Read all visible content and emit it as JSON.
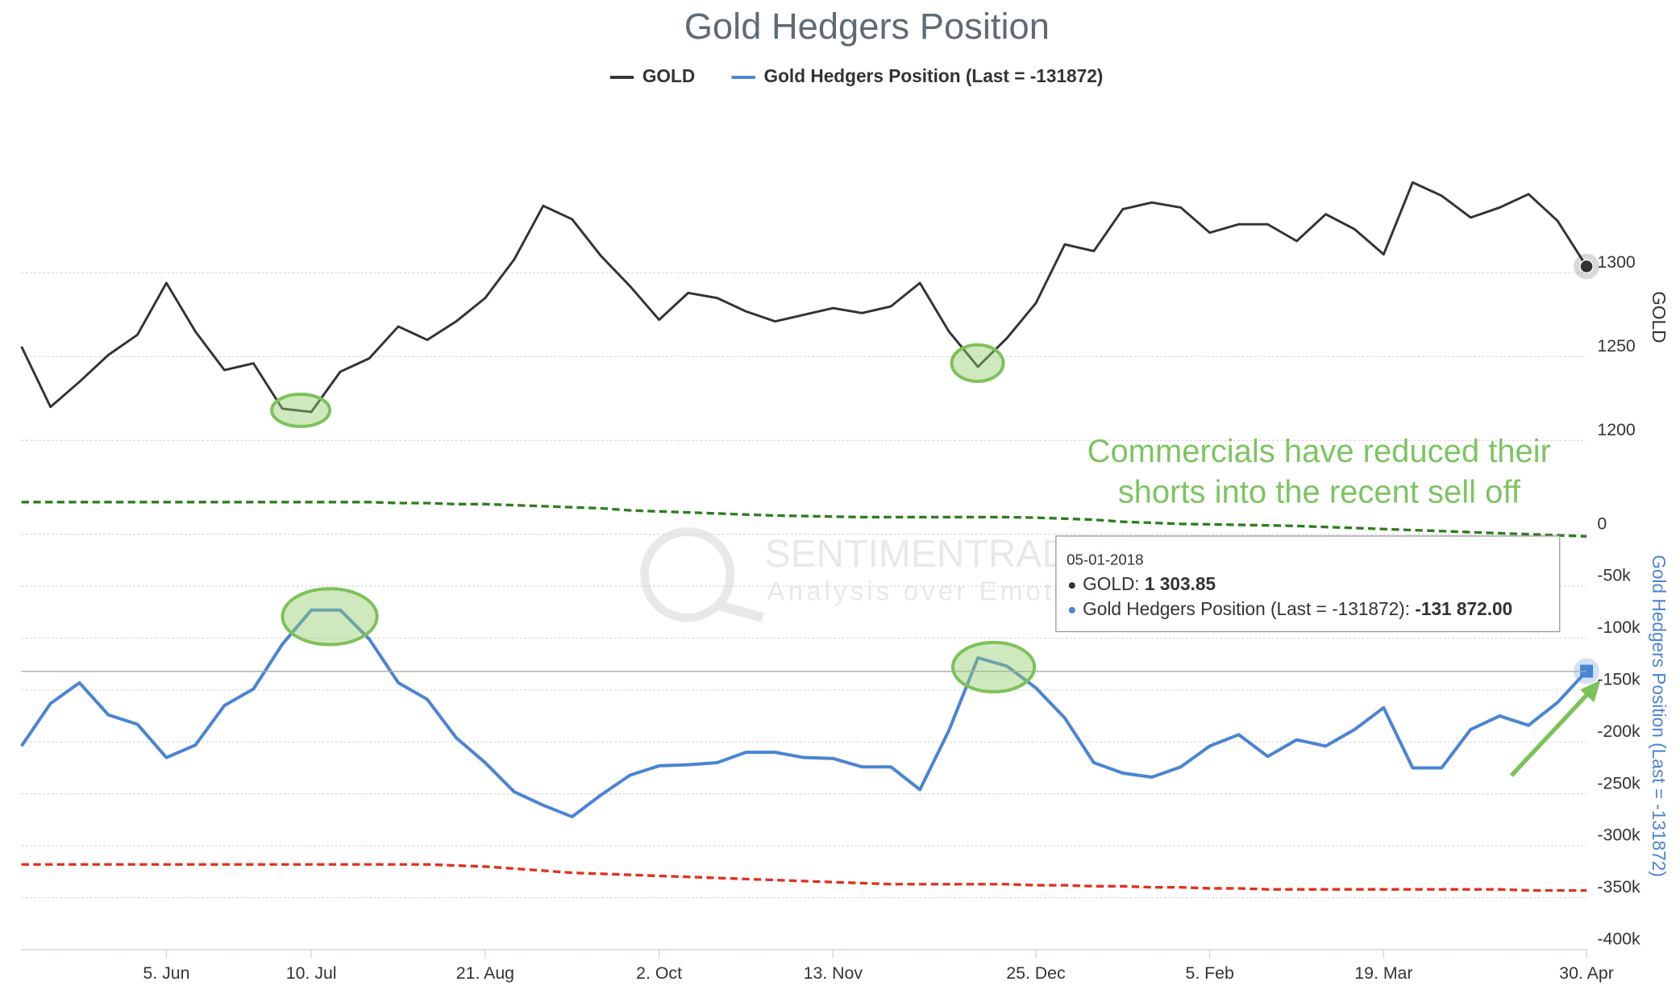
{
  "chart_data": [
    {
      "type": "line",
      "title": "Gold Hedgers Position",
      "ylabel": "GOLD",
      "ylim": [
        1200,
        1360
      ],
      "yticks": [
        1200,
        1250,
        1300
      ],
      "series": [
        {
          "name": "GOLD",
          "color": "#333333",
          "style": "solid",
          "values": [
            1256,
            1220,
            1235,
            1251,
            1263,
            1294,
            1265,
            1242,
            1246,
            1219,
            1217,
            1241,
            1249,
            1268,
            1260,
            1271,
            1285,
            1308,
            1340,
            1332,
            1310,
            1292,
            1272,
            1288,
            1285,
            1277,
            1271,
            1275,
            1279,
            1276,
            1280,
            1294,
            1265,
            1244,
            1261,
            1282,
            1317,
            1313,
            1338,
            1342,
            1339,
            1324,
            1329,
            1329,
            1319,
            1335,
            1326,
            1311,
            1354,
            1346,
            1333,
            1339,
            1347,
            1331,
            1303.85
          ]
        }
      ]
    },
    {
      "type": "line",
      "ylabel": "Gold Hedgers Position (Last = -131872)",
      "categories": [
        null,
        null,
        null,
        null,
        null,
        "5. Jun",
        null,
        null,
        null,
        null,
        "10. Jul",
        null,
        null,
        null,
        null,
        null,
        "21. Aug",
        null,
        null,
        null,
        null,
        null,
        "2. Oct",
        null,
        null,
        null,
        null,
        null,
        "13. Nov",
        null,
        null,
        null,
        null,
        null,
        null,
        "25. Dec",
        null,
        null,
        null,
        null,
        null,
        "5. Feb",
        null,
        null,
        null,
        null,
        null,
        "19. Mar",
        null,
        null,
        null,
        null,
        null,
        null,
        "30. Apr"
      ],
      "ylim": [
        -400000,
        50000
      ],
      "yticks": [
        0,
        {
          "value": -50000,
          "label": "-50k"
        },
        {
          "value": -100000,
          "label": "-100k"
        },
        {
          "value": -150000,
          "label": "-150k"
        },
        {
          "value": -200000,
          "label": "-200k"
        },
        {
          "value": -250000,
          "label": "-250k"
        },
        {
          "value": -300000,
          "label": "-300k"
        },
        {
          "value": -350000,
          "label": "-350k"
        },
        {
          "value": -400000,
          "label": "-400k"
        }
      ],
      "series": [
        {
          "name": "Gold Hedgers Position (Last = -131872)",
          "color": "#4a84d4",
          "style": "solid",
          "values": [
            -204000,
            -163000,
            -143000,
            -174000,
            -183000,
            -215000,
            -203000,
            -165000,
            -149000,
            -106000,
            -73000,
            -73000,
            -101000,
            -143000,
            -159000,
            -196000,
            -220000,
            -248000,
            -261000,
            -272000,
            -251000,
            -232000,
            -223000,
            -222000,
            -220000,
            -210000,
            -210000,
            -215000,
            -216000,
            -224000,
            -224000,
            -246000,
            -189000,
            -119000,
            -127000,
            -148000,
            -177000,
            -220000,
            -230000,
            -234000,
            -224000,
            -204000,
            -193000,
            -214000,
            -198000,
            -204000,
            -188000,
            -167000,
            -225000,
            -225000,
            -188000,
            -175000,
            -184000,
            -162000,
            -131872
          ]
        },
        {
          "color": "#2e7d1e",
          "style": "dashed",
          "values": [
            31000,
            31000,
            31000,
            31000,
            31000,
            31000,
            31000,
            31000,
            31000,
            31000,
            31000,
            31000,
            31000,
            30000,
            30000,
            29000,
            29000,
            28000,
            27000,
            26000,
            25000,
            23000,
            22000,
            21000,
            20000,
            19000,
            18000,
            17500,
            17000,
            16500,
            16500,
            16500,
            16500,
            16500,
            16500,
            16000,
            15000,
            14000,
            12000,
            11000,
            10000,
            9500,
            9000,
            8500,
            8000,
            7000,
            6000,
            5000,
            4000,
            3000,
            2000,
            1000,
            0,
            -1000,
            -2000
          ]
        },
        {
          "color": "#e0301e",
          "style": "dashed",
          "values": [
            -318000,
            -318000,
            -318000,
            -318000,
            -318000,
            -318000,
            -318000,
            -318000,
            -318000,
            -318000,
            -318000,
            -318000,
            -318000,
            -318000,
            -318000,
            -319000,
            -320000,
            -322000,
            -324000,
            -326000,
            -327000,
            -328000,
            -329000,
            -330000,
            -331000,
            -332000,
            -333000,
            -334000,
            -335000,
            -336000,
            -337000,
            -337000,
            -337000,
            -337000,
            -337000,
            -338000,
            -338000,
            -339000,
            -339000,
            -340000,
            -340000,
            -341000,
            -341000,
            -342000,
            -342000,
            -342000,
            -342000,
            -342000,
            -342000,
            -342000,
            -342000,
            -342000,
            -343000,
            -343000,
            -343000
          ]
        }
      ],
      "annotation": [
        "Commercials have reduced their",
        "shorts into the recent sell off"
      ],
      "watermark": [
        "SENTIMENTRADER",
        "Analysis over Emotion"
      ],
      "tooltip": {
        "date": "05-01-2018",
        "items": [
          {
            "name": "GOLD:",
            "value": "1 303.85"
          },
          {
            "name": "Gold Hedgers Position (Last = -131872):",
            "value": "-131 872.00"
          }
        ]
      }
    }
  ]
}
